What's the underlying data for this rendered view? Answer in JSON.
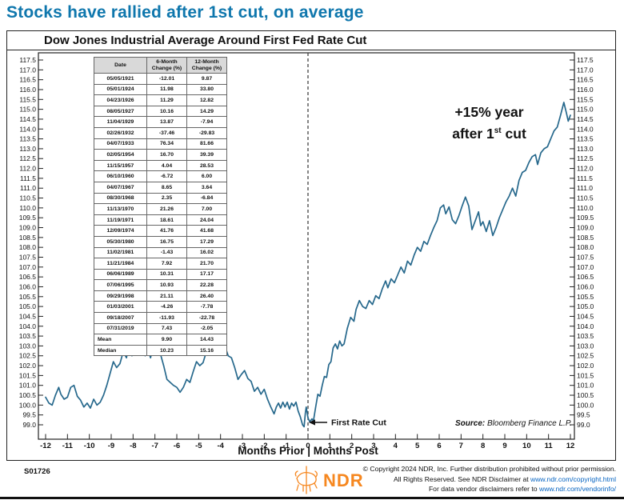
{
  "colors": {
    "accent_blue": "#0f77ad",
    "line_blue": "#26688c",
    "ndr_orange": "#f6871f",
    "link_blue": "#0563c1"
  },
  "page_title": "Stocks have rallied after 1st cut, on average",
  "table": {
    "headers": [
      [
        "Date",
        ""
      ],
      [
        "6-Month",
        "Change (%)"
      ],
      [
        "12-Month",
        "Change (%)"
      ]
    ],
    "rows": [
      [
        "05/05/1921",
        "-12.01",
        "9.87"
      ],
      [
        "05/01/1924",
        "11.98",
        "33.80"
      ],
      [
        "04/23/1926",
        "11.29",
        "12.82"
      ],
      [
        "08/05/1927",
        "10.16",
        "14.29"
      ],
      [
        "11/04/1929",
        "13.87",
        "-7.94"
      ],
      [
        "02/26/1932",
        "-37.46",
        "-29.83"
      ],
      [
        "04/07/1933",
        "76.34",
        "81.66"
      ],
      [
        "02/05/1954",
        "16.70",
        "39.39"
      ],
      [
        "11/15/1957",
        "4.04",
        "28.53"
      ],
      [
        "06/10/1960",
        "-6.72",
        "6.00"
      ],
      [
        "04/07/1967",
        "8.65",
        "3.64"
      ],
      [
        "08/30/1968",
        "2.35",
        "-6.84"
      ],
      [
        "11/13/1970",
        "21.26",
        "7.00"
      ],
      [
        "11/19/1971",
        "18.61",
        "24.04"
      ],
      [
        "12/09/1974",
        "41.76",
        "41.68"
      ],
      [
        "05/30/1980",
        "16.75",
        "17.29"
      ],
      [
        "11/02/1981",
        "-1.43",
        "16.02"
      ],
      [
        "11/21/1984",
        "7.92",
        "21.70"
      ],
      [
        "06/06/1989",
        "10.31",
        "17.17"
      ],
      [
        "07/06/1995",
        "10.93",
        "22.28"
      ],
      [
        "09/29/1998",
        "21.11",
        "26.40"
      ],
      [
        "01/03/2001",
        "-4.26",
        "-7.78"
      ],
      [
        "09/18/2007",
        "-11.93",
        "-22.78"
      ],
      [
        "07/31/2019",
        "7.43",
        "-2.05"
      ],
      [
        "Mean",
        "9.90",
        "14.43"
      ],
      [
        "Median",
        "10.23",
        "15.16"
      ]
    ]
  },
  "chart_data": {
    "type": "line",
    "title": "Dow Jones Industrial Average Around First Fed Rate Cut",
    "xlabel": "Months Prior | Months Post",
    "xlim": [
      -12,
      12
    ],
    "x_tick_step": 1,
    "ylim": [
      99.0,
      117.5
    ],
    "y_tick_step": 0.5,
    "grid": false,
    "legend": "none",
    "dashed_vline_x": 0,
    "annotation_big": {
      "line1": "+15% year",
      "line2_pre": "after 1",
      "line2_sup": "st",
      "line2_post": " cut"
    },
    "first_rate_cut_label": "First Rate Cut",
    "source_label": "Source:",
    "source_text": " Bloomberg Finance L.P.",
    "series": [
      {
        "name": "DJIA indexed around first Fed rate cut (average of cycles)",
        "points": [
          [
            -12,
            100.4
          ],
          [
            -11.85,
            100.1
          ],
          [
            -11.7,
            100.0
          ],
          [
            -11.55,
            100.5
          ],
          [
            -11.4,
            100.9
          ],
          [
            -11.3,
            100.55
          ],
          [
            -11.15,
            100.3
          ],
          [
            -11,
            100.4
          ],
          [
            -10.85,
            100.9
          ],
          [
            -10.7,
            101.0
          ],
          [
            -10.55,
            100.45
          ],
          [
            -10.4,
            100.25
          ],
          [
            -10.25,
            99.9
          ],
          [
            -10.1,
            100.1
          ],
          [
            -9.95,
            99.85
          ],
          [
            -9.8,
            100.3
          ],
          [
            -9.65,
            100.0
          ],
          [
            -9.5,
            100.15
          ],
          [
            -9.35,
            100.5
          ],
          [
            -9.2,
            101.0
          ],
          [
            -9.05,
            101.6
          ],
          [
            -8.9,
            102.2
          ],
          [
            -8.75,
            101.9
          ],
          [
            -8.6,
            102.1
          ],
          [
            -8.45,
            102.7
          ],
          [
            -8.3,
            102.4
          ],
          [
            -8.2,
            103.0
          ],
          [
            -8.05,
            102.5
          ],
          [
            -7.9,
            102.9
          ],
          [
            -7.75,
            103.45
          ],
          [
            -7.6,
            102.9
          ],
          [
            -7.45,
            102.5
          ],
          [
            -7.35,
            102.9
          ],
          [
            -7.2,
            102.4
          ],
          [
            -7.05,
            103.1
          ],
          [
            -6.9,
            103.35
          ],
          [
            -6.75,
            102.6
          ],
          [
            -6.6,
            102.0
          ],
          [
            -6.45,
            101.3
          ],
          [
            -6.3,
            101.15
          ],
          [
            -6.15,
            101.0
          ],
          [
            -6,
            100.9
          ],
          [
            -5.85,
            100.65
          ],
          [
            -5.7,
            100.9
          ],
          [
            -5.55,
            101.3
          ],
          [
            -5.4,
            101.15
          ],
          [
            -5.25,
            101.7
          ],
          [
            -5.1,
            102.2
          ],
          [
            -4.95,
            102.0
          ],
          [
            -4.8,
            102.15
          ],
          [
            -4.65,
            102.7
          ],
          [
            -4.5,
            103.05
          ],
          [
            -4.35,
            102.6
          ],
          [
            -4.25,
            103.1
          ],
          [
            -4.1,
            102.65
          ],
          [
            -3.95,
            102.9
          ],
          [
            -3.8,
            103.0
          ],
          [
            -3.65,
            102.5
          ],
          [
            -3.5,
            102.4
          ],
          [
            -3.35,
            101.9
          ],
          [
            -3.2,
            101.3
          ],
          [
            -3.05,
            101.55
          ],
          [
            -2.9,
            101.75
          ],
          [
            -2.75,
            101.35
          ],
          [
            -2.6,
            101.2
          ],
          [
            -2.45,
            100.7
          ],
          [
            -2.3,
            100.9
          ],
          [
            -2.15,
            100.55
          ],
          [
            -2,
            100.8
          ],
          [
            -1.85,
            100.3
          ],
          [
            -1.7,
            99.9
          ],
          [
            -1.55,
            99.55
          ],
          [
            -1.45,
            99.9
          ],
          [
            -1.35,
            100.1
          ],
          [
            -1.25,
            99.85
          ],
          [
            -1.15,
            100.15
          ],
          [
            -1.05,
            99.9
          ],
          [
            -0.95,
            100.15
          ],
          [
            -0.85,
            99.8
          ],
          [
            -0.75,
            100.1
          ],
          [
            -0.65,
            99.95
          ],
          [
            -0.55,
            100.15
          ],
          [
            -0.45,
            99.7
          ],
          [
            -0.35,
            99.4
          ],
          [
            -0.25,
            99.0
          ],
          [
            -0.18,
            98.9
          ],
          [
            -0.12,
            99.6
          ],
          [
            -0.08,
            99.9
          ],
          [
            0,
            99.35
          ],
          [
            0.08,
            99.15
          ],
          [
            0.18,
            99.3
          ],
          [
            0.25,
            99.2
          ],
          [
            0.35,
            99.9
          ],
          [
            0.45,
            100.55
          ],
          [
            0.55,
            100.45
          ],
          [
            0.65,
            101.0
          ],
          [
            0.75,
            101.45
          ],
          [
            0.85,
            101.4
          ],
          [
            0.95,
            102.05
          ],
          [
            1.05,
            102.2
          ],
          [
            1.15,
            102.9
          ],
          [
            1.25,
            103.1
          ],
          [
            1.35,
            102.85
          ],
          [
            1.45,
            103.25
          ],
          [
            1.55,
            103.0
          ],
          [
            1.65,
            103.1
          ],
          [
            1.8,
            103.9
          ],
          [
            1.95,
            104.45
          ],
          [
            2.1,
            104.25
          ],
          [
            2.2,
            104.85
          ],
          [
            2.35,
            105.3
          ],
          [
            2.5,
            105.0
          ],
          [
            2.65,
            104.9
          ],
          [
            2.8,
            105.3
          ],
          [
            2.95,
            105.1
          ],
          [
            3.1,
            105.55
          ],
          [
            3.25,
            105.4
          ],
          [
            3.4,
            105.9
          ],
          [
            3.55,
            106.3
          ],
          [
            3.65,
            105.95
          ],
          [
            3.8,
            106.4
          ],
          [
            3.95,
            106.2
          ],
          [
            4.1,
            106.6
          ],
          [
            4.25,
            107.0
          ],
          [
            4.4,
            106.7
          ],
          [
            4.55,
            107.3
          ],
          [
            4.7,
            107.1
          ],
          [
            4.85,
            107.6
          ],
          [
            5,
            108.0
          ],
          [
            5.15,
            107.8
          ],
          [
            5.3,
            108.3
          ],
          [
            5.45,
            108.15
          ],
          [
            5.6,
            108.6
          ],
          [
            5.75,
            109.0
          ],
          [
            5.9,
            109.35
          ],
          [
            6.05,
            110.0
          ],
          [
            6.2,
            110.15
          ],
          [
            6.3,
            109.7
          ],
          [
            6.45,
            110.05
          ],
          [
            6.6,
            109.4
          ],
          [
            6.75,
            109.2
          ],
          [
            6.9,
            109.6
          ],
          [
            7.05,
            110.1
          ],
          [
            7.2,
            110.55
          ],
          [
            7.35,
            110.1
          ],
          [
            7.5,
            108.9
          ],
          [
            7.65,
            109.35
          ],
          [
            7.8,
            109.8
          ],
          [
            7.9,
            109.1
          ],
          [
            8,
            109.3
          ],
          [
            8.15,
            108.8
          ],
          [
            8.3,
            109.35
          ],
          [
            8.45,
            108.6
          ],
          [
            8.6,
            109.0
          ],
          [
            8.75,
            109.5
          ],
          [
            8.9,
            109.9
          ],
          [
            9.05,
            110.3
          ],
          [
            9.2,
            110.6
          ],
          [
            9.35,
            111.0
          ],
          [
            9.5,
            110.6
          ],
          [
            9.65,
            111.4
          ],
          [
            9.8,
            111.8
          ],
          [
            9.95,
            111.9
          ],
          [
            10.1,
            112.3
          ],
          [
            10.25,
            112.6
          ],
          [
            10.4,
            112.7
          ],
          [
            10.5,
            112.2
          ],
          [
            10.65,
            112.8
          ],
          [
            10.8,
            113.0
          ],
          [
            10.95,
            113.1
          ],
          [
            11.1,
            113.5
          ],
          [
            11.25,
            113.9
          ],
          [
            11.4,
            114.1
          ],
          [
            11.55,
            114.7
          ],
          [
            11.7,
            115.35
          ],
          [
            11.82,
            114.8
          ],
          [
            11.9,
            114.4
          ],
          [
            12,
            114.7
          ]
        ]
      }
    ]
  },
  "footer": {
    "doc_code": "S01726",
    "ndr_wordmark": "NDR",
    "line1": "© Copyright 2024 NDR, Inc. Further distribution prohibited without prior permission.",
    "line2_pre": "All Rights Reserved. See NDR Disclaimer at ",
    "line2_link": "www.ndr.com/copyright.html",
    "line3_pre": "For data vendor disclaimers refer to ",
    "line3_link": "www.ndr.com/vendorinfo/"
  }
}
